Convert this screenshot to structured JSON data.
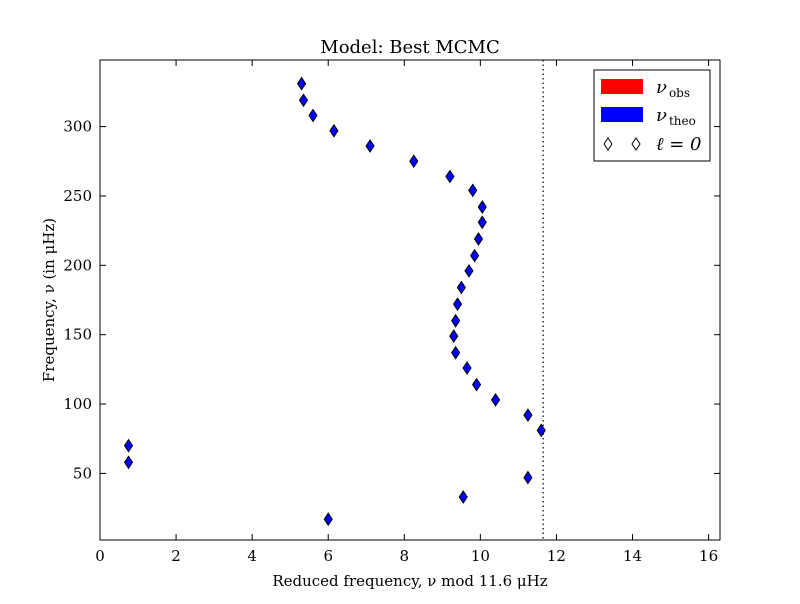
{
  "chart_data": {
    "type": "scatter",
    "title": "Model: Best MCMC",
    "xlabel": "Reduced frequency, ν mod 11.6 μHz",
    "ylabel": "Frequency, ν (in μHz)",
    "xlim": [
      0,
      16.3
    ],
    "ylim": [
      2,
      348
    ],
    "x_ticks": [
      0,
      2,
      4,
      6,
      8,
      10,
      12,
      14,
      16
    ],
    "y_ticks": [
      50,
      100,
      150,
      200,
      250,
      300
    ],
    "vline_x": 11.65,
    "grid": false,
    "legend_position": "top-right",
    "legend": [
      {
        "main": "ν",
        "sub": "obs",
        "color": "#ff0000",
        "kind": "patch"
      },
      {
        "main": "ν",
        "sub": "theo",
        "color": "#0000ff",
        "kind": "patch"
      },
      {
        "main": "ℓ = 0",
        "kind": "markers"
      }
    ],
    "series": [
      {
        "marker_color": "#0000ff",
        "points": [
          {
            "x": 5.3,
            "y": 331
          },
          {
            "x": 5.35,
            "y": 319
          },
          {
            "x": 5.6,
            "y": 308
          },
          {
            "x": 6.15,
            "y": 297
          },
          {
            "x": 7.1,
            "y": 286
          },
          {
            "x": 8.25,
            "y": 275
          },
          {
            "x": 9.2,
            "y": 264
          },
          {
            "x": 9.8,
            "y": 254
          },
          {
            "x": 10.05,
            "y": 242
          },
          {
            "x": 10.05,
            "y": 231
          },
          {
            "x": 9.95,
            "y": 219
          },
          {
            "x": 9.85,
            "y": 207
          },
          {
            "x": 9.7,
            "y": 196
          },
          {
            "x": 9.5,
            "y": 184
          },
          {
            "x": 9.4,
            "y": 172
          },
          {
            "x": 9.35,
            "y": 160
          },
          {
            "x": 9.3,
            "y": 149
          },
          {
            "x": 9.35,
            "y": 137
          },
          {
            "x": 9.65,
            "y": 126
          },
          {
            "x": 9.9,
            "y": 114
          },
          {
            "x": 10.4,
            "y": 103
          },
          {
            "x": 11.25,
            "y": 92
          },
          {
            "x": 11.6,
            "y": 81
          },
          {
            "x": 0.75,
            "y": 70
          },
          {
            "x": 0.75,
            "y": 58
          },
          {
            "x": 11.25,
            "y": 47
          },
          {
            "x": 9.55,
            "y": 33
          },
          {
            "x": 6.0,
            "y": 17
          }
        ]
      }
    ]
  }
}
